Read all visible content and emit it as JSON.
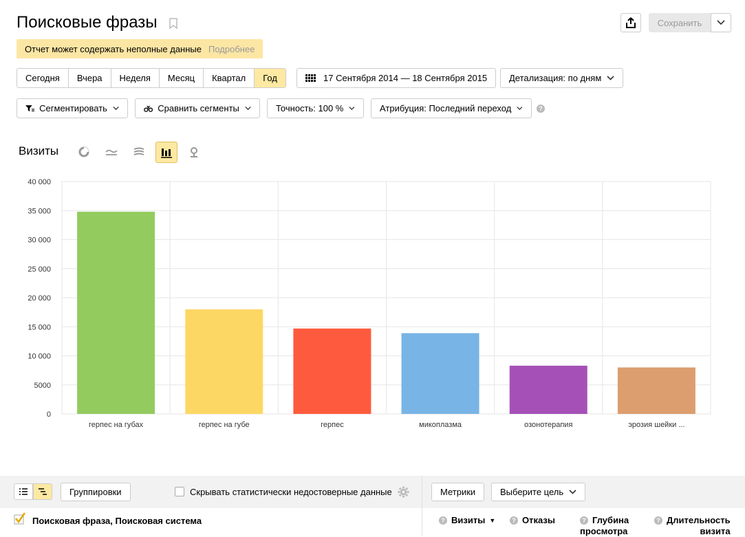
{
  "header": {
    "title": "Поисковые фразы",
    "save_label": "Сохранить"
  },
  "warning": {
    "text": "Отчет может содержать неполные данные",
    "link": "Подробнее"
  },
  "period_tabs": [
    "Сегодня",
    "Вчера",
    "Неделя",
    "Месяц",
    "Квартал",
    "Год"
  ],
  "active_period": "Год",
  "date_range": "17 Сентября 2014 — 18 Сентября 2015",
  "detail": "Детализация: по дням",
  "toolbar2": {
    "segment": "Сегментировать",
    "compare": "Сравнить сегменты",
    "accuracy": "Точность: 100 %",
    "attribution": "Атрибуция: Последний переход"
  },
  "chart_section": {
    "metric": "Визиты"
  },
  "chart_data": {
    "type": "bar",
    "categories": [
      "герпес на губах",
      "герпес на губе",
      "герпес",
      "микоплазма",
      "озонотерапия",
      "эрозия шейки ..."
    ],
    "values": [
      34800,
      18000,
      14700,
      13900,
      8300,
      8000
    ],
    "colors": [
      "#94cb5f",
      "#fdd764",
      "#fe5a3e",
      "#78b4e5",
      "#a550b7",
      "#dc9e6e"
    ],
    "ylim": [
      0,
      40000
    ],
    "yticks": [
      "0",
      "5000",
      "10 000",
      "15 000",
      "20 000",
      "25 000",
      "30 000",
      "35 000",
      "40 000"
    ],
    "ytick_values": [
      0,
      5000,
      10000,
      15000,
      20000,
      25000,
      30000,
      35000,
      40000
    ],
    "grid": true,
    "xlabel": "",
    "ylabel": ""
  },
  "bottom": {
    "groupings": "Группировки",
    "hide_unreliable": "Скрывать статистически недостоверные данные",
    "metrics": "Метрики",
    "goal": "Выберите цель"
  },
  "table_header": {
    "dimension": "Поисковая фраза, Поисковая система",
    "visits": "Визиты",
    "bounces": "Отказы",
    "depth_1": "Глубина",
    "depth_2": "просмотра",
    "duration_1": "Длительность",
    "duration_2": "визита"
  }
}
